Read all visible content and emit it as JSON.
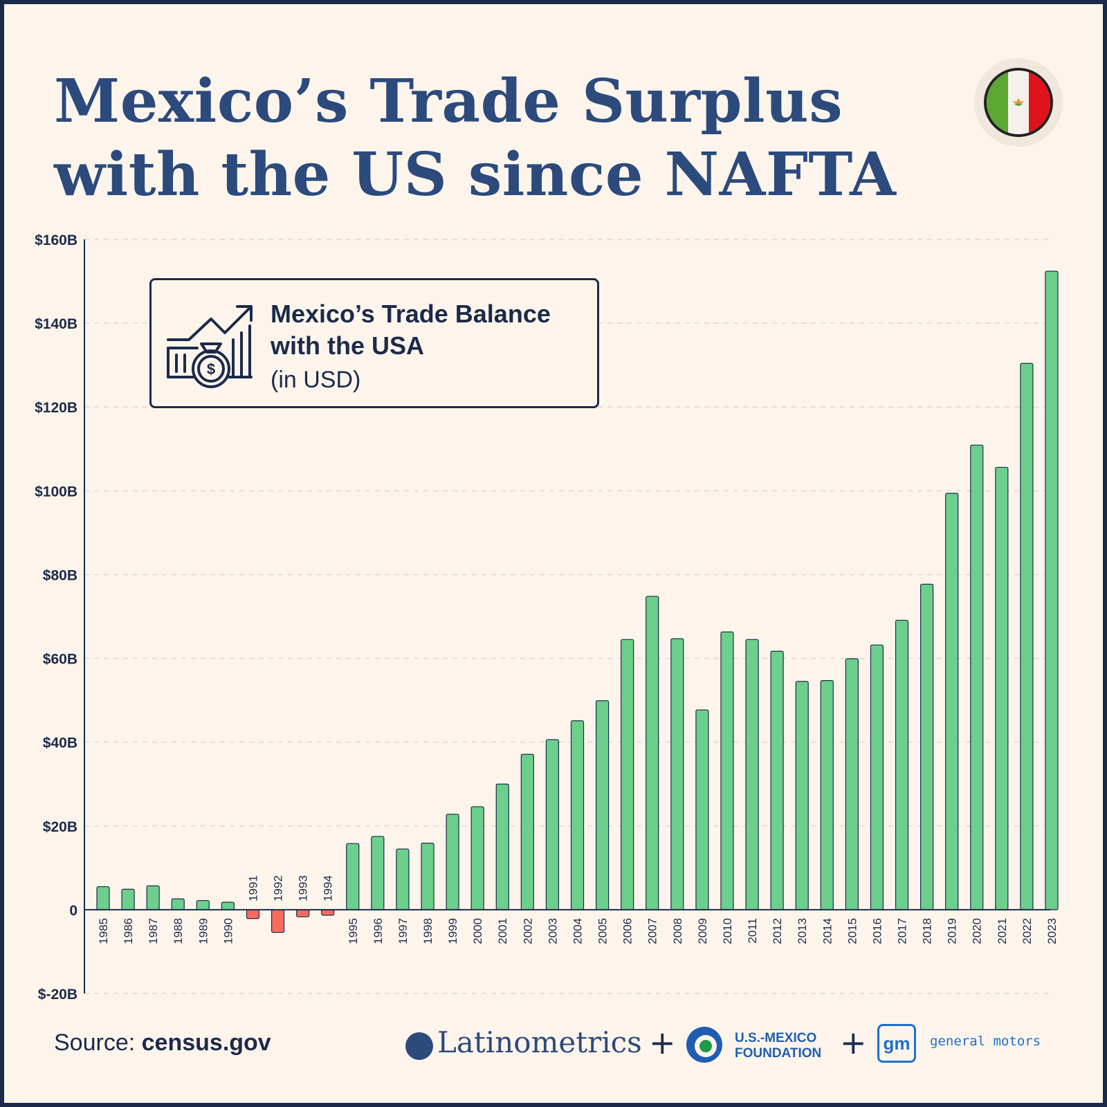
{
  "title": {
    "line1": "Mexico’s Trade Surplus",
    "line2": "with the US since NAFTA"
  },
  "legend": {
    "title_line1": "Mexico’s Trade Balance",
    "title_line2": "with the USA",
    "subtitle": "(in USD)"
  },
  "source": {
    "label": "Source:",
    "value": "census.gov"
  },
  "logos": {
    "latinometrics": "Latinometrics",
    "plus": "+",
    "usmf_line1": "U.S.-MEXICO",
    "usmf_line2": "FOUNDATION",
    "gm_mark": "gm",
    "gm_name": "general motors"
  },
  "colors": {
    "positive": "#6ccf8b",
    "negative": "#f76b5e",
    "title": "#2c4a7c",
    "text": "#1c2a4a",
    "grid": "#dfd6cb"
  },
  "chart_data": {
    "type": "bar",
    "title": "Mexico’s Trade Balance with the USA",
    "ylabel": "(in USD)",
    "xlabel": "",
    "ylim": [
      -20,
      160
    ],
    "y_unit": "billion USD",
    "y_ticks": [
      -20,
      0,
      20,
      40,
      60,
      80,
      100,
      120,
      140,
      160
    ],
    "y_tick_labels": [
      "$-20B",
      "0",
      "$20B",
      "$40B",
      "$60B",
      "$80B",
      "$100B",
      "$120B",
      "$140B",
      "$160B"
    ],
    "grid": true,
    "categories": [
      "1985",
      "1986",
      "1987",
      "1988",
      "1989",
      "1990",
      "1991",
      "1992",
      "1993",
      "1994",
      "1995",
      "1996",
      "1997",
      "1998",
      "1999",
      "2000",
      "2001",
      "2002",
      "2003",
      "2004",
      "2005",
      "2006",
      "2007",
      "2008",
      "2009",
      "2010",
      "2011",
      "2012",
      "2013",
      "2014",
      "2015",
      "2016",
      "2017",
      "2018",
      "2019",
      "2020",
      "2021",
      "2022",
      "2023"
    ],
    "values": [
      5.5,
      4.9,
      5.7,
      2.6,
      2.2,
      1.8,
      -2.1,
      -5.4,
      -1.7,
      -1.3,
      15.8,
      17.5,
      14.5,
      15.9,
      22.8,
      24.6,
      30.0,
      37.1,
      40.6,
      45.1,
      49.9,
      64.5,
      74.8,
      64.7,
      47.7,
      66.3,
      64.5,
      61.7,
      54.5,
      54.7,
      59.9,
      63.2,
      69.1,
      77.7,
      99.4,
      110.9,
      105.6,
      130.4,
      152.4
    ]
  }
}
